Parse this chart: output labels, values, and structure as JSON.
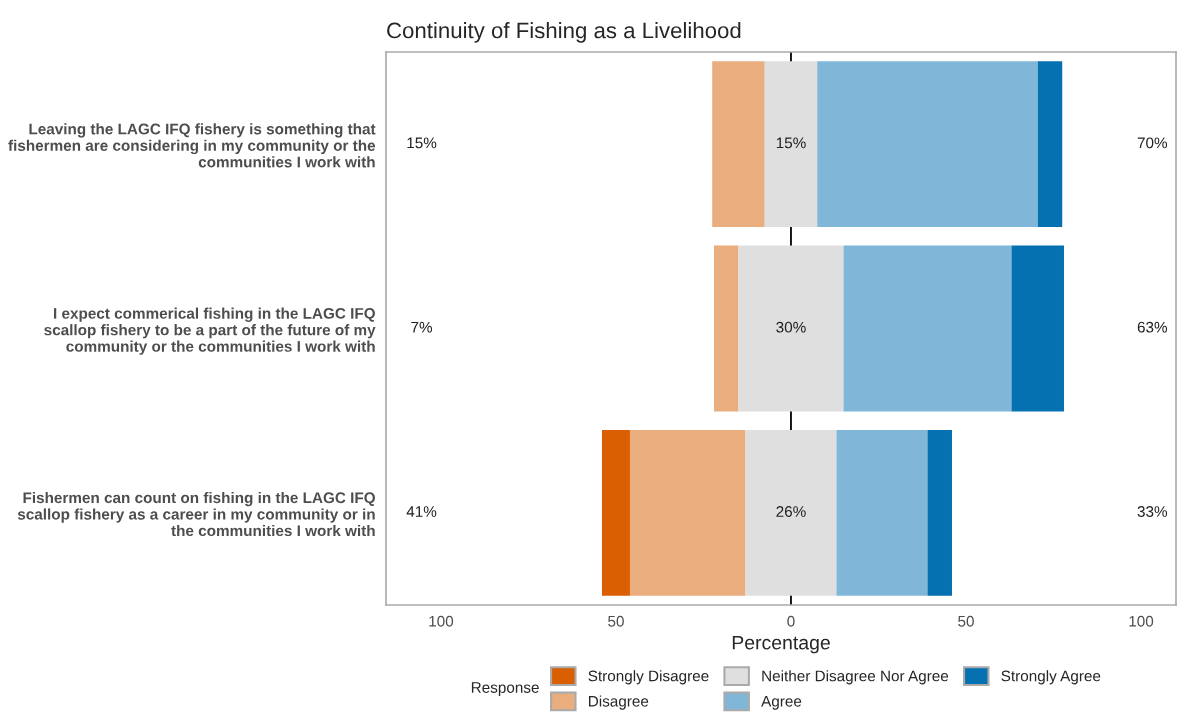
{
  "chart_data": {
    "type": "bar",
    "orientation": "horizontal",
    "title": "Continuity of Fishing as a Livelihood",
    "xlabel": "Percentage",
    "legend_title": "Response",
    "categories": [
      "Leaving the LAGC IFQ fishery is something that\nfishermen are considering in my community or the\ncommunities I work with",
      "I expect commerical fishing in the LAGC IFQ\nscallop fishery to be a part of the future of my\ncommunity or the communities I work with",
      "Fishermen can count on fishing in the LAGC IFQ\nscallop fishery as a career in my community or in\nthe communities I work with"
    ],
    "series": [
      {
        "name": "Strongly Disagree",
        "color": "#d95f02",
        "values": [
          null,
          null,
          8
        ],
        "base": [
          null,
          null,
          -54
        ]
      },
      {
        "name": "Disagree",
        "color": "#eaad7e",
        "values": [
          15,
          7,
          33
        ],
        "base": [
          -22.5,
          -22,
          -46
        ]
      },
      {
        "name": "Neither Disagree Nor Agree",
        "color": "#dfdfdf",
        "values": [
          15,
          30,
          26
        ],
        "base": [
          -7.5,
          -15,
          -13
        ]
      },
      {
        "name": "Agree",
        "color": "#80b7d8",
        "values": [
          63,
          48,
          26
        ],
        "base": [
          7.5,
          15,
          13
        ]
      },
      {
        "name": "Strongly Agree",
        "color": "#0571b0",
        "values": [
          7,
          15,
          7
        ],
        "base": [
          70.5,
          63,
          39
        ]
      }
    ],
    "xlim": [
      -115.7,
      110
    ],
    "xticks": [
      {
        "value": -100,
        "label": "100"
      },
      {
        "value": -50,
        "label": "50"
      },
      0,
      50,
      100
    ],
    "ref_lines": [
      {
        "axis": "x",
        "value": 0,
        "color": "#000000"
      }
    ],
    "annotations": [
      "15%",
      "15%",
      "70%",
      "7%",
      "30%",
      "63%",
      "41%",
      "26%",
      "33%"
    ],
    "legend": "bottom",
    "grid": false
  }
}
